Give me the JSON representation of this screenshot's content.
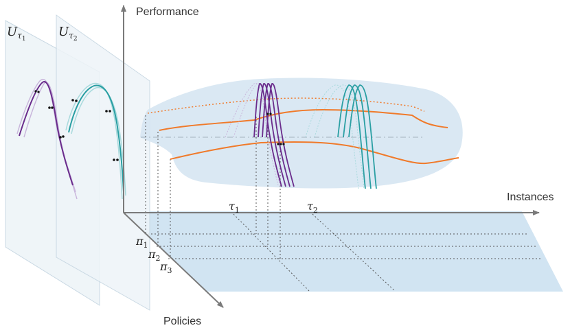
{
  "axes": {
    "performance": "Performance",
    "instances": "Instances",
    "policies": "Policies"
  },
  "instance_labels": [
    {
      "base": "τ",
      "sub": "1"
    },
    {
      "base": "τ",
      "sub": "2"
    }
  ],
  "policy_labels": [
    {
      "base": "π",
      "sub": "1"
    },
    {
      "base": "π",
      "sub": "2"
    },
    {
      "base": "π",
      "sub": "3"
    }
  ],
  "utility_planes": [
    {
      "base": "U",
      "sub": "τ",
      "subsub": "1"
    },
    {
      "base": "U",
      "sub": "τ",
      "subsub": "2"
    }
  ],
  "colors": {
    "axis": "#7a7a7a",
    "floor": "#cfe3f1",
    "surface": "#d6e6f2",
    "policy_curve": "#f07a2a",
    "tau1_curve": "#6a2c8c",
    "tau1_light": "#c9b6dc",
    "tau2_curve": "#2a9fa3",
    "tau2_light": "#a9dadd",
    "plane_fill": "#eef4f8"
  }
}
